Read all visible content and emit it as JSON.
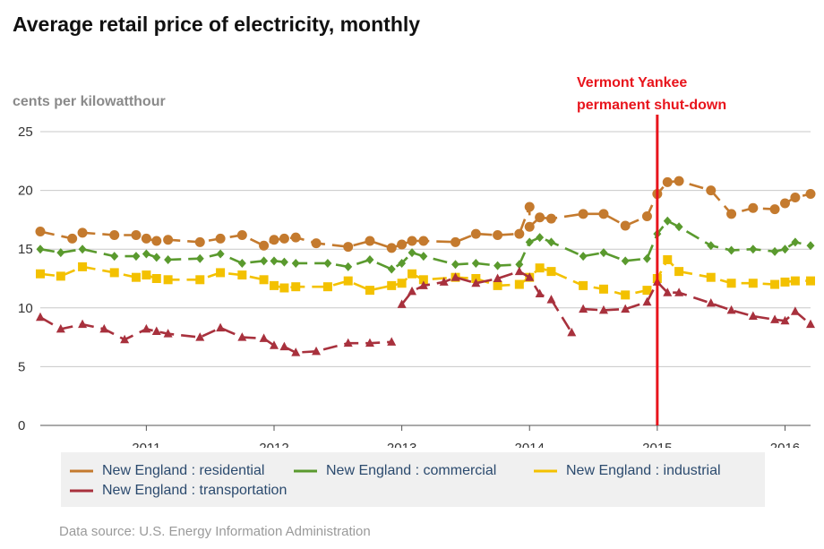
{
  "chart_data": {
    "type": "line",
    "title": "Average retail price of electricity, monthly",
    "ylabel": "cents per kilowatthour",
    "xlabel": "",
    "xlim": [
      2010.17,
      2016.2
    ],
    "ylim": [
      0,
      25
    ],
    "y_ticks": [
      0,
      5,
      10,
      15,
      20,
      25
    ],
    "x_ticks": [
      2011,
      2012,
      2013,
      2014,
      2015,
      2016
    ],
    "annotation": {
      "x": 2015,
      "lines": [
        "Vermont Yankee",
        "permanent shut-down"
      ],
      "color": "#e8141c"
    },
    "source": "Data source: U.S. Energy Information Administration",
    "series": [
      {
        "name": "New England : residential",
        "color": "#c47a2e",
        "marker": "circle",
        "points": [
          [
            2010.17,
            16.5
          ],
          [
            2010.42,
            15.9
          ],
          [
            2010.5,
            16.4
          ],
          [
            2010.75,
            16.2
          ],
          [
            2010.92,
            16.2
          ],
          [
            2011.0,
            15.9
          ],
          [
            2011.08,
            15.7
          ],
          [
            2011.17,
            15.8
          ],
          [
            2011.42,
            15.6
          ],
          [
            2011.58,
            15.9
          ],
          [
            2011.75,
            16.2
          ],
          [
            2011.92,
            15.3
          ],
          [
            2012.0,
            15.8
          ],
          [
            2012.08,
            15.9
          ],
          [
            2012.17,
            16.0
          ],
          [
            2012.33,
            15.5
          ],
          [
            2012.58,
            15.2
          ],
          [
            2012.75,
            15.7
          ],
          [
            2012.92,
            15.1
          ],
          [
            2013.0,
            15.4
          ],
          [
            2013.08,
            15.7
          ],
          [
            2013.17,
            15.7
          ],
          [
            2013.42,
            15.6
          ],
          [
            2013.58,
            16.3
          ],
          [
            2013.75,
            16.2
          ],
          [
            2013.92,
            16.3
          ],
          [
            2014.0,
            18.6
          ],
          [
            2014.0,
            16.9
          ],
          [
            2014.08,
            17.7
          ],
          [
            2014.17,
            17.6
          ],
          [
            2014.42,
            18.0
          ],
          [
            2014.58,
            18.0
          ],
          [
            2014.75,
            17.0
          ],
          [
            2014.92,
            17.8
          ],
          [
            2015.0,
            19.7
          ],
          [
            2015.08,
            20.7
          ],
          [
            2015.17,
            20.8
          ],
          [
            2015.42,
            20.0
          ],
          [
            2015.58,
            18.0
          ],
          [
            2015.75,
            18.5
          ],
          [
            2015.92,
            18.4
          ],
          [
            2016.0,
            18.9
          ],
          [
            2016.08,
            19.4
          ],
          [
            2016.2,
            19.7
          ]
        ]
      },
      {
        "name": "New England : commercial",
        "color": "#5a9a2e",
        "marker": "diamond",
        "points": [
          [
            2010.17,
            15.0
          ],
          [
            2010.33,
            14.7
          ],
          [
            2010.5,
            15.0
          ],
          [
            2010.75,
            14.4
          ],
          [
            2010.92,
            14.4
          ],
          [
            2011.0,
            14.6
          ],
          [
            2011.08,
            14.3
          ],
          [
            2011.17,
            14.1
          ],
          [
            2011.42,
            14.2
          ],
          [
            2011.58,
            14.6
          ],
          [
            2011.75,
            13.8
          ],
          [
            2011.92,
            14.0
          ],
          [
            2012.0,
            14.0
          ],
          [
            2012.08,
            13.9
          ],
          [
            2012.17,
            13.8
          ],
          [
            2012.42,
            13.8
          ],
          [
            2012.58,
            13.5
          ],
          [
            2012.75,
            14.1
          ],
          [
            2012.92,
            13.3
          ],
          [
            2013.0,
            13.8
          ],
          [
            2013.08,
            14.7
          ],
          [
            2013.17,
            14.4
          ],
          [
            2013.42,
            13.7
          ],
          [
            2013.58,
            13.8
          ],
          [
            2013.75,
            13.6
          ],
          [
            2013.92,
            13.7
          ],
          [
            2014.0,
            15.6
          ],
          [
            2014.08,
            16.0
          ],
          [
            2014.17,
            15.6
          ],
          [
            2014.42,
            14.4
          ],
          [
            2014.58,
            14.7
          ],
          [
            2014.75,
            14.0
          ],
          [
            2014.92,
            14.2
          ],
          [
            2015.0,
            16.3
          ],
          [
            2015.08,
            17.4
          ],
          [
            2015.17,
            16.9
          ],
          [
            2015.42,
            15.3
          ],
          [
            2015.58,
            14.9
          ],
          [
            2015.75,
            15.0
          ],
          [
            2015.92,
            14.8
          ],
          [
            2016.0,
            15.0
          ],
          [
            2016.08,
            15.6
          ],
          [
            2016.2,
            15.3
          ]
        ]
      },
      {
        "name": "New England : industrial",
        "color": "#f3c100",
        "marker": "square",
        "points": [
          [
            2010.17,
            12.9
          ],
          [
            2010.33,
            12.7
          ],
          [
            2010.5,
            13.5
          ],
          [
            2010.75,
            13.0
          ],
          [
            2010.92,
            12.6
          ],
          [
            2011.0,
            12.8
          ],
          [
            2011.08,
            12.5
          ],
          [
            2011.17,
            12.4
          ],
          [
            2011.42,
            12.4
          ],
          [
            2011.58,
            13.0
          ],
          [
            2011.75,
            12.8
          ],
          [
            2011.92,
            12.4
          ],
          [
            2012.0,
            11.9
          ],
          [
            2012.08,
            11.7
          ],
          [
            2012.17,
            11.8
          ],
          [
            2012.42,
            11.8
          ],
          [
            2012.58,
            12.3
          ],
          [
            2012.75,
            11.5
          ],
          [
            2012.92,
            11.9
          ],
          [
            2013.0,
            12.1
          ],
          [
            2013.08,
            12.9
          ],
          [
            2013.17,
            12.4
          ],
          [
            2013.42,
            12.6
          ],
          [
            2013.58,
            12.5
          ],
          [
            2013.75,
            11.9
          ],
          [
            2013.92,
            12.0
          ],
          [
            2014.0,
            12.6
          ],
          [
            2014.08,
            13.4
          ],
          [
            2014.17,
            13.1
          ],
          [
            2014.42,
            11.9
          ],
          [
            2014.58,
            11.6
          ],
          [
            2014.75,
            11.1
          ],
          [
            2014.92,
            11.5
          ],
          [
            2015.0,
            12.5
          ],
          [
            2015.08,
            14.1
          ],
          [
            2015.17,
            13.1
          ],
          [
            2015.42,
            12.6
          ],
          [
            2015.58,
            12.1
          ],
          [
            2015.75,
            12.1
          ],
          [
            2015.92,
            12.0
          ],
          [
            2016.0,
            12.2
          ],
          [
            2016.08,
            12.3
          ],
          [
            2016.2,
            12.3
          ]
        ]
      },
      {
        "name": "New England : transportation",
        "color": "#a8313d",
        "marker": "triangle",
        "segments": [
          [
            [
              2010.17,
              9.2
            ],
            [
              2010.33,
              8.2
            ],
            [
              2010.5,
              8.6
            ],
            [
              2010.67,
              8.2
            ],
            [
              2010.83,
              7.3
            ],
            [
              2011.0,
              8.2
            ],
            [
              2011.08,
              8.0
            ],
            [
              2011.17,
              7.8
            ],
            [
              2011.42,
              7.5
            ],
            [
              2011.58,
              8.3
            ],
            [
              2011.75,
              7.5
            ],
            [
              2011.92,
              7.4
            ],
            [
              2012.0,
              6.8
            ],
            [
              2012.08,
              6.7
            ],
            [
              2012.17,
              6.2
            ],
            [
              2012.33,
              6.3
            ],
            [
              2012.58,
              7.0
            ],
            [
              2012.75,
              7.0
            ],
            [
              2012.92,
              7.1
            ]
          ],
          [
            [
              2013.0,
              10.3
            ],
            [
              2013.08,
              11.4
            ],
            [
              2013.17,
              11.9
            ],
            [
              2013.33,
              12.2
            ],
            [
              2013.42,
              12.6
            ],
            [
              2013.58,
              12.1
            ],
            [
              2013.75,
              12.5
            ],
            [
              2013.92,
              13.1
            ],
            [
              2014.0,
              12.6
            ],
            [
              2014.08,
              11.2
            ],
            [
              2014.17,
              10.7
            ],
            [
              2014.33,
              7.9
            ]
          ],
          [
            [
              2014.42,
              9.9
            ],
            [
              2014.58,
              9.8
            ],
            [
              2014.75,
              9.9
            ],
            [
              2014.92,
              10.5
            ],
            [
              2015.0,
              12.2
            ],
            [
              2015.08,
              11.3
            ],
            [
              2015.17,
              11.3
            ],
            [
              2015.42,
              10.4
            ],
            [
              2015.58,
              9.8
            ],
            [
              2015.75,
              9.3
            ],
            [
              2015.92,
              9.0
            ],
            [
              2016.0,
              8.9
            ],
            [
              2016.08,
              9.7
            ],
            [
              2016.2,
              8.6
            ]
          ]
        ]
      }
    ]
  }
}
